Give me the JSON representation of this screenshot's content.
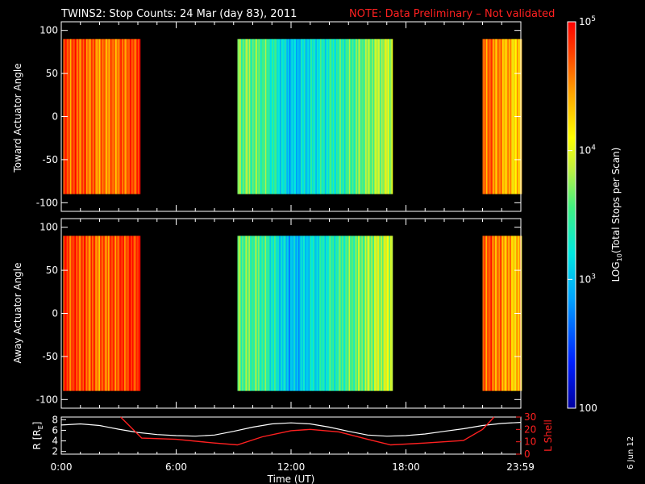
{
  "title": {
    "main": "TWINS2: Stop Counts: 24 Mar (day  83), 2011",
    "note": "NOTE: Data Preliminary – Not validated"
  },
  "footer_date": "6 Jun 12",
  "colors": {
    "background": "#000000",
    "axes": "#ffffff",
    "note": "#ff2020",
    "r_line": "#ffffff",
    "lshell_line": "#ff2020"
  },
  "colorbar": {
    "label": "LOG10(Total Stops per Scan)",
    "label_prefix": "LOG",
    "label_sub": "10",
    "label_suffix": "(Total Stops per Scan)",
    "scale": "log",
    "range": [
      100,
      100000
    ],
    "ticks": [
      {
        "value": 100,
        "label": "100"
      },
      {
        "value": 1000,
        "label": "10",
        "sup": "3"
      },
      {
        "value": 10000,
        "label": "10",
        "sup": "4"
      },
      {
        "value": 100000,
        "label": "10",
        "sup": "5"
      }
    ]
  },
  "x_axis": {
    "label": "Time (UT)",
    "range_hours": [
      0,
      24
    ],
    "ticks": [
      {
        "hours": 0,
        "label": "0:00"
      },
      {
        "hours": 6,
        "label": "6:00"
      },
      {
        "hours": 12,
        "label": "12:00"
      },
      {
        "hours": 18,
        "label": "18:00"
      },
      {
        "hours": 23.983,
        "label": "23:59"
      }
    ]
  },
  "chart_data": [
    {
      "type": "heatmap",
      "ylabel": "Toward Actuator Angle",
      "ylim": [
        -110,
        110
      ],
      "yticks": [
        100,
        50,
        0,
        -50,
        -100
      ],
      "angle_range": [
        -90,
        90
      ],
      "data_intervals_hours": [
        [
          0.1,
          4.1
        ],
        [
          9.2,
          17.3
        ],
        [
          22.0,
          24.0
        ]
      ],
      "log10_counts_profile": [
        {
          "hours": 0.1,
          "log10": 4.75
        },
        {
          "hours": 1.0,
          "log10": 4.7
        },
        {
          "hours": 2.0,
          "log10": 4.55
        },
        {
          "hours": 3.0,
          "log10": 4.6
        },
        {
          "hours": 4.0,
          "log10": 4.8
        },
        {
          "hours": 9.2,
          "log10": 3.7
        },
        {
          "hours": 10.5,
          "log10": 3.55
        },
        {
          "hours": 12.0,
          "log10": 3.0
        },
        {
          "hours": 13.0,
          "log10": 3.2
        },
        {
          "hours": 14.5,
          "log10": 3.4
        },
        {
          "hours": 16.0,
          "log10": 3.7
        },
        {
          "hours": 17.2,
          "log10": 3.9
        },
        {
          "hours": 22.0,
          "log10": 4.7
        },
        {
          "hours": 23.0,
          "log10": 4.45
        },
        {
          "hours": 24.0,
          "log10": 4.2
        }
      ]
    },
    {
      "type": "heatmap",
      "ylabel": "Away Actuator Angle",
      "ylim": [
        -110,
        110
      ],
      "yticks": [
        100,
        50,
        0,
        -50,
        -100
      ],
      "angle_range": [
        -90,
        90
      ],
      "data_intervals_hours": [
        [
          0.1,
          4.1
        ],
        [
          9.2,
          17.3
        ],
        [
          22.0,
          24.0
        ]
      ],
      "log10_counts_profile": [
        {
          "hours": 0.1,
          "log10": 4.8
        },
        {
          "hours": 1.0,
          "log10": 4.75
        },
        {
          "hours": 2.0,
          "log10": 4.6
        },
        {
          "hours": 3.0,
          "log10": 4.75
        },
        {
          "hours": 4.0,
          "log10": 4.85
        },
        {
          "hours": 9.2,
          "log10": 3.65
        },
        {
          "hours": 10.5,
          "log10": 3.5
        },
        {
          "hours": 12.0,
          "log10": 2.95
        },
        {
          "hours": 13.0,
          "log10": 3.15
        },
        {
          "hours": 14.5,
          "log10": 3.45
        },
        {
          "hours": 16.0,
          "log10": 3.75
        },
        {
          "hours": 17.2,
          "log10": 3.95
        },
        {
          "hours": 22.0,
          "log10": 4.75
        },
        {
          "hours": 23.0,
          "log10": 4.5
        },
        {
          "hours": 24.0,
          "log10": 4.25
        }
      ]
    },
    {
      "type": "line",
      "ylabel": "R [R_E]",
      "ylabel_main": "R [R",
      "ylabel_sub": "E",
      "ylabel_end": "]",
      "ylim": [
        1.5,
        8.5
      ],
      "yticks": [
        2,
        4,
        6,
        8
      ],
      "y2label": "L Shell",
      "y2lim": [
        0,
        30
      ],
      "y2ticks": [
        0,
        10,
        20,
        30
      ],
      "series": [
        {
          "name": "R",
          "axis": "left",
          "color": "#ffffff",
          "x_hours": [
            0,
            1,
            2,
            3,
            4,
            5,
            6,
            7,
            8,
            9,
            10,
            11,
            12,
            13,
            14,
            15,
            16,
            17,
            18,
            19,
            20,
            21,
            22,
            23,
            24
          ],
          "y": [
            7.0,
            7.2,
            6.9,
            6.2,
            5.6,
            5.2,
            5.0,
            4.9,
            5.1,
            5.8,
            6.6,
            7.2,
            7.4,
            7.2,
            6.6,
            5.8,
            5.1,
            4.9,
            5.0,
            5.3,
            5.8,
            6.3,
            6.9,
            7.3,
            7.5
          ]
        },
        {
          "name": "L Shell",
          "axis": "right",
          "color": "#ff2020",
          "x_hours": [
            3.1,
            4.2,
            6,
            8,
            9.2,
            10.5,
            12,
            13,
            14.5,
            16,
            17.2,
            19,
            21,
            22,
            22.6
          ],
          "y": [
            30,
            13,
            12,
            9,
            7.5,
            14,
            19,
            20,
            18,
            12,
            7.5,
            9,
            11,
            20,
            30
          ]
        }
      ]
    }
  ]
}
